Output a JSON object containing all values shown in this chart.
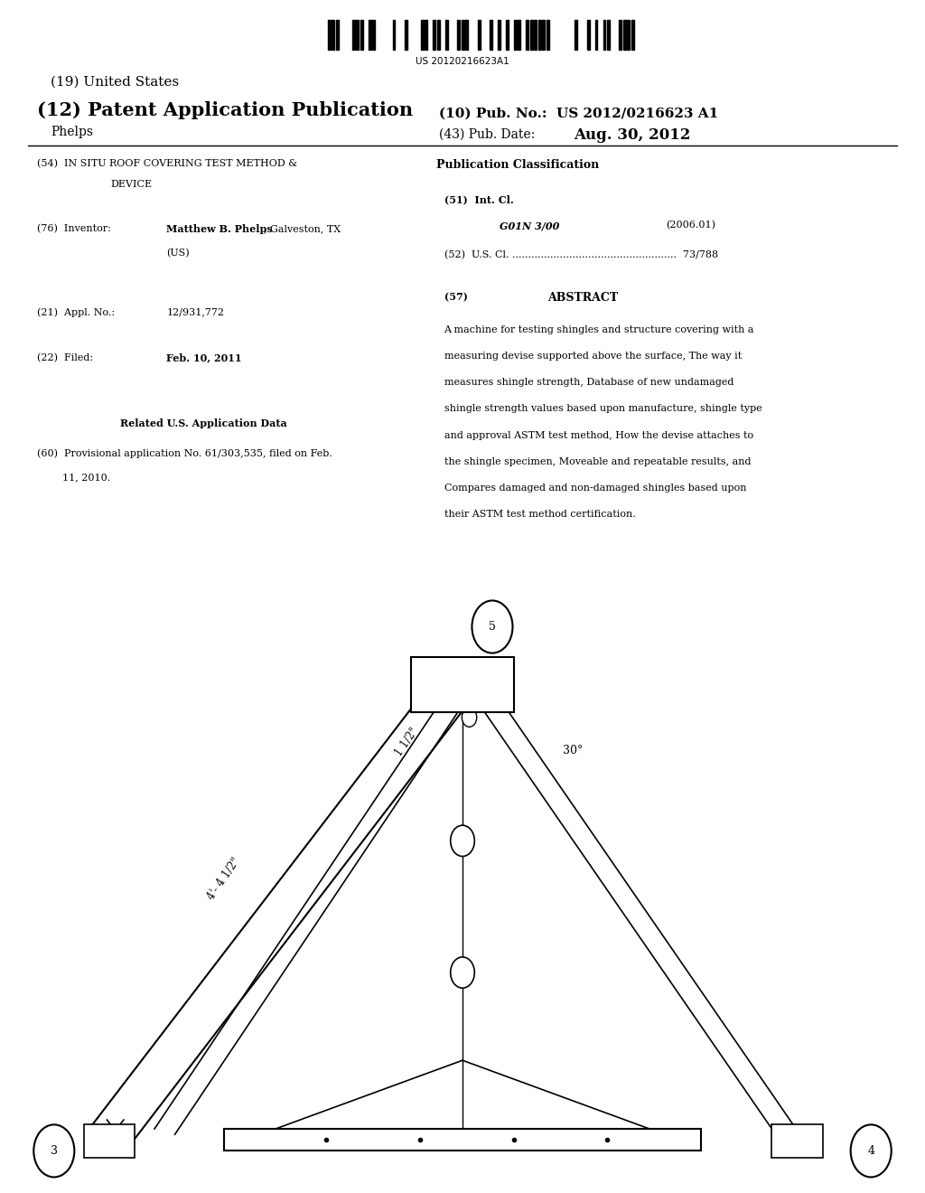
{
  "bg_color": "#ffffff",
  "barcode_text": "US 20120216623A1",
  "abstract_lines": [
    "A machine for testing shingles and structure covering with a",
    "measuring devise supported above the surface, The way it",
    "measures shingle strength, Database of new undamaged",
    "shingle strength values based upon manufacture, shingle type",
    "and approval ASTM test method, How the devise attaches to",
    "the shingle specimen, Moveable and repeatable results, and",
    "Compares damaged and non-damaged shingles based upon",
    "their ASTM test method certification."
  ],
  "label_4_1_2": "4'- 4 1/2\"",
  "label_1_1_2": "1 1/2\"",
  "label_30": "30°"
}
